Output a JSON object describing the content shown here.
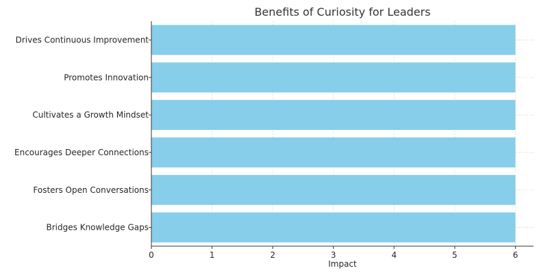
{
  "chart_data": {
    "type": "bar",
    "orientation": "horizontal",
    "title": "Benefits of Curiosity for Leaders",
    "xlabel": "Impact",
    "ylabel": "",
    "categories": [
      "Bridges Knowledge Gaps",
      "Fosters Open Conversations",
      "Encourages Deeper Connections",
      "Cultivates a Growth Mindset",
      "Promotes Innovation",
      "Drives Continuous Improvement"
    ],
    "values": [
      6,
      6,
      6,
      6,
      6,
      6
    ],
    "xlim": [
      0,
      6.3
    ],
    "xticks": [
      "0",
      "1",
      "2",
      "3",
      "4",
      "5",
      "6"
    ],
    "grid": true,
    "bar_color": "#87CEEB",
    "grid_color": "#d9d9d9",
    "axis_color": "#333333"
  }
}
